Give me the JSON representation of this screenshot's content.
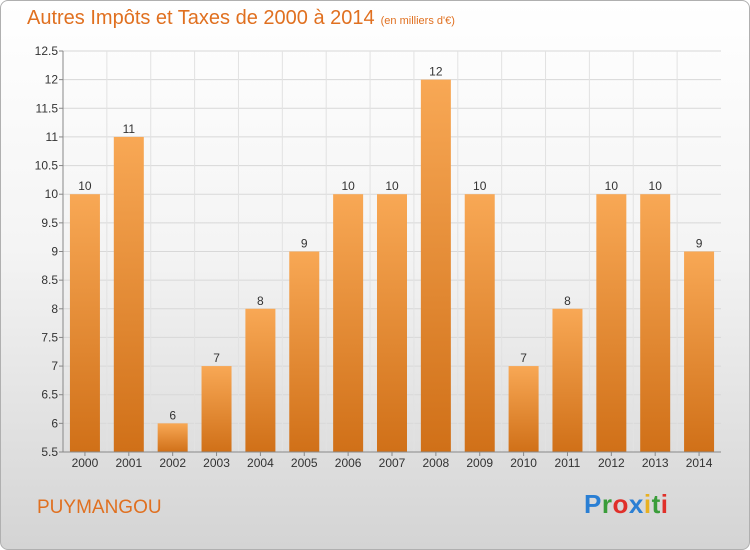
{
  "title": "Autres Impôts et Taxes de 2000 à 2014",
  "unit": "(en milliers d'€)",
  "commune": "PUYMANGOU",
  "logo": {
    "letters": [
      {
        "char": "P",
        "color": "#2a7fd4"
      },
      {
        "char": "r",
        "color": "#3a9d3a"
      },
      {
        "char": "o",
        "color": "#e0302a"
      },
      {
        "char": "x",
        "color": "#2a7fd4"
      },
      {
        "char": "i",
        "color": "#e8b020"
      },
      {
        "char": "t",
        "color": "#3a9d3a"
      },
      {
        "char": "i",
        "color": "#e0302a"
      }
    ]
  },
  "colors": {
    "bar_light": "#f8a855",
    "bar_dark": "#d07018",
    "accent": "#e07020"
  },
  "chart_data": {
    "type": "bar",
    "title": "Autres Impôts et Taxes de 2000 à 2014",
    "unit": "(en milliers d'€)",
    "categories": [
      "2000",
      "2001",
      "2002",
      "2003",
      "2004",
      "2005",
      "2006",
      "2007",
      "2008",
      "2009",
      "2010",
      "2011",
      "2012",
      "2013",
      "2014"
    ],
    "values": [
      10,
      11,
      6,
      7,
      8,
      9,
      10,
      10,
      12,
      10,
      7,
      8,
      10,
      10,
      9
    ],
    "ylim": [
      5.5,
      12.5
    ],
    "yticks": [
      5.5,
      6,
      6.5,
      7,
      7.5,
      8,
      8.5,
      9,
      9.5,
      10,
      10.5,
      11,
      11.5,
      12,
      12.5
    ],
    "ytick_labels": [
      "5.5",
      "6",
      "6.5",
      "7",
      "7.5",
      "8",
      "8.5",
      "9",
      "9.5",
      "10",
      "10.5",
      "11",
      "11.5",
      "12",
      "12.5"
    ],
    "grid": true
  }
}
